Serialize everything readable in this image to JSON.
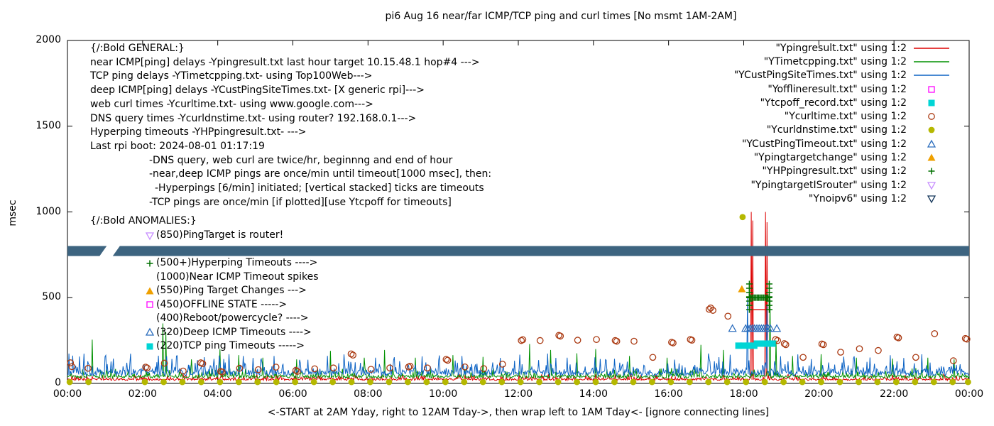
{
  "chart_data": {
    "type": "mixed",
    "title": "pi6 Aug 16  near/far ICMP/TCP ping and curl times [No msmt 1AM-2AM]",
    "xlabel": "<-START at 2AM Yday, right to 12AM Tday->, then wrap left to 1AM Tday<- [ignore connecting lines]",
    "ylabel": "msec",
    "xlim": [
      0,
      24
    ],
    "ylim": [
      0,
      2000
    ],
    "grid": false,
    "legend_position": "top-right",
    "x_ticks": [
      {
        "pos": 0,
        "label": "00:00"
      },
      {
        "pos": 2,
        "label": "02:00"
      },
      {
        "pos": 4,
        "label": "04:00"
      },
      {
        "pos": 6,
        "label": "06:00"
      },
      {
        "pos": 8,
        "label": "08:00"
      },
      {
        "pos": 10,
        "label": "10:00"
      },
      {
        "pos": 12,
        "label": "12:00"
      },
      {
        "pos": 14,
        "label": "14:00"
      },
      {
        "pos": 16,
        "label": "16:00"
      },
      {
        "pos": 18,
        "label": "18:00"
      },
      {
        "pos": 20,
        "label": "20:00"
      },
      {
        "pos": 22,
        "label": "22:00"
      },
      {
        "pos": 24,
        "label": "00:00"
      }
    ],
    "y_ticks": [
      0,
      500,
      1000,
      1500,
      2000
    ],
    "series": [
      {
        "id": "near-icmp-ping",
        "file": "Ypingresult.txt",
        "type": "noise-line",
        "color": "#dd0000",
        "base": 22,
        "amp": 13,
        "seed": 3,
        "spikes": [
          [
            18.2,
            1000
          ],
          [
            18.24,
            950
          ],
          [
            18.58,
            1000
          ],
          [
            18.62,
            940
          ]
        ],
        "plateaus": [
          {
            "from": 18.15,
            "to": 18.6,
            "y": 430
          }
        ]
      },
      {
        "id": "tcp-ping",
        "file": "YTimetcpping.txt",
        "type": "noise-line",
        "color": "#009100",
        "base": 38,
        "amp": 20,
        "seed": 11,
        "spikes": [
          [
            0.65,
            255
          ],
          [
            2.55,
            350
          ],
          [
            2.62,
            300
          ],
          [
            3.3,
            140
          ],
          [
            4.05,
            200
          ],
          [
            4.55,
            165
          ],
          [
            5.2,
            150
          ],
          [
            6.1,
            140
          ],
          [
            7.0,
            190
          ],
          [
            7.9,
            150
          ],
          [
            8.45,
            195
          ],
          [
            9.25,
            150
          ],
          [
            10.25,
            165
          ],
          [
            11.05,
            155
          ],
          [
            12.3,
            230
          ],
          [
            12.85,
            195
          ],
          [
            13.55,
            175
          ],
          [
            14.05,
            200
          ],
          [
            14.95,
            160
          ],
          [
            15.95,
            150
          ],
          [
            16.85,
            225
          ],
          [
            17.45,
            195
          ],
          [
            18.7,
            500
          ],
          [
            18.85,
            250
          ],
          [
            19.3,
            160
          ],
          [
            20.05,
            170
          ],
          [
            21.0,
            150
          ],
          [
            21.95,
            145
          ],
          [
            22.9,
            150
          ],
          [
            23.6,
            140
          ]
        ],
        "plateaus": []
      },
      {
        "id": "deep-icmp-ping",
        "file": "YCustPingSiteTimes.txt",
        "type": "noise-line",
        "color": "#0b62c4",
        "base": 60,
        "amp": 45,
        "seed": 27,
        "spikes": [
          [
            2.9,
            160
          ],
          [
            4.3,
            170
          ],
          [
            5.5,
            160
          ],
          [
            8.2,
            150
          ],
          [
            10.5,
            160
          ],
          [
            13.3,
            150
          ],
          [
            18.1,
            500
          ],
          [
            18.62,
            460
          ]
        ],
        "plateaus": []
      },
      {
        "id": "curl-times",
        "file": "Ycurltime.txt",
        "type": "scatter",
        "marker": "circle-open",
        "color": "#aa3911",
        "points": [
          [
            0.08,
            120
          ],
          [
            0.12,
            98
          ],
          [
            0.55,
            88
          ],
          [
            2.08,
            95
          ],
          [
            2.12,
            90
          ],
          [
            2.58,
            118
          ],
          [
            3.08,
            72
          ],
          [
            3.55,
            120
          ],
          [
            3.6,
            115
          ],
          [
            4.08,
            70
          ],
          [
            4.12,
            66
          ],
          [
            4.58,
            88
          ],
          [
            5.08,
            80
          ],
          [
            5.55,
            95
          ],
          [
            6.08,
            76
          ],
          [
            6.12,
            70
          ],
          [
            6.58,
            85
          ],
          [
            7.08,
            90
          ],
          [
            7.55,
            172
          ],
          [
            7.6,
            165
          ],
          [
            8.08,
            82
          ],
          [
            8.58,
            90
          ],
          [
            9.08,
            96
          ],
          [
            9.12,
            100
          ],
          [
            9.58,
            90
          ],
          [
            10.08,
            140
          ],
          [
            10.12,
            135
          ],
          [
            10.58,
            96
          ],
          [
            11.08,
            86
          ],
          [
            11.58,
            112
          ],
          [
            12.08,
            250
          ],
          [
            12.12,
            255
          ],
          [
            12.58,
            250
          ],
          [
            13.08,
            280
          ],
          [
            13.12,
            276
          ],
          [
            13.58,
            252
          ],
          [
            14.08,
            256
          ],
          [
            14.58,
            250
          ],
          [
            14.62,
            246
          ],
          [
            15.08,
            246
          ],
          [
            15.58,
            152
          ],
          [
            16.08,
            240
          ],
          [
            16.12,
            236
          ],
          [
            16.58,
            256
          ],
          [
            16.62,
            252
          ],
          [
            17.08,
            432
          ],
          [
            17.12,
            440
          ],
          [
            17.18,
            426
          ],
          [
            17.58,
            392
          ],
          [
            18.85,
            256
          ],
          [
            18.9,
            250
          ],
          [
            19.08,
            232
          ],
          [
            19.12,
            226
          ],
          [
            19.58,
            152
          ],
          [
            20.08,
            230
          ],
          [
            20.12,
            226
          ],
          [
            20.58,
            182
          ],
          [
            21.08,
            202
          ],
          [
            21.58,
            192
          ],
          [
            22.08,
            270
          ],
          [
            22.12,
            266
          ],
          [
            22.58,
            152
          ],
          [
            23.08,
            290
          ],
          [
            23.58,
            132
          ],
          [
            23.9,
            262
          ],
          [
            23.94,
            258
          ]
        ]
      },
      {
        "id": "dns-query-times",
        "file": "Ycurldnstime.txt",
        "type": "scatter",
        "marker": "circle-fill",
        "color": "#b5b800",
        "row_y": 8,
        "xs": [
          0.06,
          0.56,
          2.06,
          2.56,
          3.06,
          3.56,
          4.06,
          4.56,
          5.06,
          5.56,
          6.06,
          6.56,
          7.06,
          7.56,
          8.06,
          8.56,
          9.06,
          9.56,
          10.06,
          10.56,
          11.06,
          11.56,
          12.06,
          12.56,
          13.06,
          13.56,
          14.06,
          14.56,
          15.06,
          15.56,
          16.06,
          16.56,
          17.06,
          17.56,
          18.06,
          18.56,
          19.06,
          19.56,
          20.06,
          20.56,
          21.06,
          21.56,
          22.06,
          22.56,
          23.06,
          23.56,
          23.97
        ],
        "points": [
          [
            17.97,
            970
          ]
        ]
      },
      {
        "id": "tcp-ping-timeouts",
        "file": "Ytcpoff_record.txt",
        "type": "scatter",
        "marker": "square-fill",
        "color": "#00d5d5",
        "points": [
          [
            17.86,
            220
          ],
          [
            18.0,
            220
          ],
          [
            18.14,
            220
          ],
          [
            18.28,
            220
          ],
          [
            18.35,
            232
          ],
          [
            18.49,
            232
          ],
          [
            18.63,
            232
          ],
          [
            18.77,
            232
          ]
        ]
      },
      {
        "id": "deep-icmp-timeouts",
        "file": "YCustPingTimeout.txt",
        "type": "scatter",
        "marker": "tri-up-open",
        "color": "#2e6fbe",
        "row": {
          "from": 18.05,
          "to": 18.75,
          "step": 0.06,
          "y": 320
        },
        "points": [
          [
            17.7,
            320
          ],
          [
            18.88,
            320
          ]
        ]
      },
      {
        "id": "ping-target-change",
        "file": "Ypingtargetchange",
        "type": "scatter",
        "marker": "tri-up-fill",
        "color": "#efa000",
        "points": [
          [
            17.95,
            550
          ]
        ]
      },
      {
        "id": "hyperping-timeouts",
        "file": "YHPpingresult.txt",
        "type": "scatter",
        "marker": "plus",
        "color": "#007000",
        "row": {
          "from": 18.15,
          "to": 18.7,
          "step": 0.035,
          "y": 500
        },
        "stacks": [
          {
            "x": 18.15,
            "from": 430,
            "to": 580,
            "step": 25
          },
          {
            "x": 18.68,
            "from": 430,
            "to": 580,
            "step": 25
          }
        ],
        "points": []
      },
      {
        "id": "noipv6-band",
        "file": "Ynoipv6",
        "type": "band",
        "color": "#3d6480",
        "y": 772,
        "half": 29,
        "gaps": [
          [
            0.95,
            1.3
          ]
        ]
      }
    ]
  },
  "legend": {
    "items": [
      {
        "label": "\"Ypingresult.txt\" using 1:2",
        "glyph": "line",
        "color": "#dd0000"
      },
      {
        "label": "\"YTimetcpping.txt\" using 1:2",
        "glyph": "line",
        "color": "#009100"
      },
      {
        "label": "\"YCustPingSiteTimes.txt\" using 1:2",
        "glyph": "line",
        "color": "#0b62c4"
      },
      {
        "label": "\"Yofflineresult.txt\" using 1:2",
        "glyph": "square-open",
        "color": "#ff00ff"
      },
      {
        "label": "\"Ytcpoff_record.txt\" using 1:2",
        "glyph": "square-fill",
        "color": "#00d5d5"
      },
      {
        "label": "\"Ycurltime.txt\" using 1:2",
        "glyph": "circle-open",
        "color": "#aa3911"
      },
      {
        "label": "\"Ycurldnstime.txt\" using 1:2",
        "glyph": "circle-fill",
        "color": "#b5b800"
      },
      {
        "label": "\"YCustPingTimeout.txt\" using 1:2",
        "glyph": "tri-up-open",
        "color": "#2e6fbe"
      },
      {
        "label": "\"Ypingtargetchange\" using 1:2",
        "glyph": "tri-up-fill",
        "color": "#efa000"
      },
      {
        "label": "\"YHPpingresult.txt\" using 1:2",
        "glyph": "plus",
        "color": "#007000"
      },
      {
        "label": "\"YpingtargetISrouter\" using 1:2",
        "glyph": "tri-down-open",
        "color": "#c88fff"
      },
      {
        "label": "\"Ynoipv6\" using 1:2",
        "glyph": "tri-down-open",
        "color": "#14365a"
      }
    ]
  },
  "annotations": {
    "general": [
      {
        "text": "{/:Bold GENERAL:}",
        "indent": 0
      },
      {
        "text": "near ICMP[ping] delays -Ypingresult.txt last hour target 10.15.48.1 hop#4 --->",
        "indent": 0
      },
      {
        "text": "TCP ping delays -YTimetcpping.txt- using Top100Web--->",
        "indent": 0
      },
      {
        "text": "deep ICMP[ping] delays -YCustPingSiteTimes.txt- [X generic rpi]--->",
        "indent": 0
      },
      {
        "text": "web curl times -Ycurltime.txt- using www.google.com--->",
        "indent": 0
      },
      {
        "text": "DNS query times -Ycurldnstime.txt- using router? 192.168.0.1--->",
        "indent": 0
      },
      {
        "text": "Hyperping timeouts -YHPpingresult.txt- --->",
        "indent": 0
      },
      {
        "text": "Last rpi boot: 2024-08-01 01:17:19",
        "indent": 0
      },
      {
        "text": "-DNS query, web curl are twice/hr, beginnng and end of hour",
        "indent": 1
      },
      {
        "text": "-near,deep ICMP pings are once/min until timeout[1000 msec], then:",
        "indent": 1
      },
      {
        "text": "-Hyperpings [6/min] initiated; [vertical stacked] ticks are timeouts",
        "indent": 2
      },
      {
        "text": "-TCP pings are once/min [if plotted][use Ytcpoff for timeouts]",
        "indent": 1
      }
    ],
    "anomalies_header": "{/:Bold ANOMALIES:}",
    "anomalies": [
      {
        "glyph": "tri-down-open",
        "color": "#c88fff",
        "text": "(850)PingTarget is router!"
      },
      {
        "glyph": null,
        "color": null,
        "text": ""
      },
      {
        "glyph": "plus",
        "color": "#007000",
        "text": "(500+)Hyperping Timeouts ---->"
      },
      {
        "glyph": null,
        "color": null,
        "text": "(1000)Near ICMP Timeout spikes"
      },
      {
        "glyph": "tri-up-fill",
        "color": "#efa000",
        "text": "(550)Ping Target Changes --->"
      },
      {
        "glyph": "square-open",
        "color": "#ff00ff",
        "text": "(450)OFFLINE STATE ----->"
      },
      {
        "glyph": null,
        "color": null,
        "text": "(400)Reboot/powercycle? ---->"
      },
      {
        "glyph": "tri-up-open",
        "color": "#2e6fbe",
        "text": "(320)Deep ICMP Timeouts ---->"
      },
      {
        "glyph": "square-fill",
        "color": "#00d5d5",
        "text": "(220)TCP ping Timeouts ----->"
      }
    ]
  }
}
